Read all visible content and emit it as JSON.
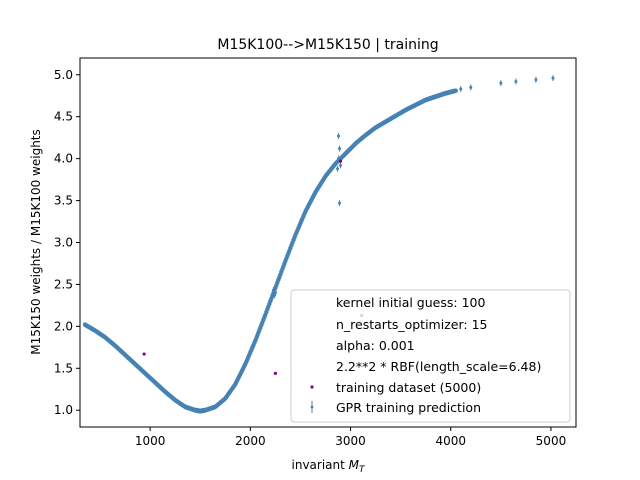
{
  "chart_data": {
    "type": "scatter",
    "title": "M15K100-->M15K150 | training",
    "xlabel_main": "invariant ",
    "xlabel_symbol": "M",
    "xlabel_sub": "T",
    "ylabel": "M15K150 weights / M15K100 weights",
    "xlim": [
      300,
      5250
    ],
    "ylim": [
      0.8,
      5.2
    ],
    "xticks": [
      1000,
      2000,
      3000,
      4000,
      5000
    ],
    "yticks": [
      1.0,
      1.5,
      2.0,
      2.5,
      3.0,
      3.5,
      4.0,
      4.5,
      5.0
    ],
    "xtick_labels": [
      "1000",
      "2000",
      "3000",
      "4000",
      "5000"
    ],
    "ytick_labels": [
      "1.0",
      "1.5",
      "2.0",
      "2.5",
      "3.0",
      "3.5",
      "4.0",
      "4.5",
      "5.0"
    ],
    "grid": false,
    "legend_position": "lower-right",
    "legend_lines": [
      "kernel initial guess: 100",
      "n_restarts_optimizer: 15",
      "alpha: 0.001",
      "2.2**2 * RBF(length_scale=6.48)"
    ],
    "series": [
      {
        "name": "GPR training prediction",
        "color": "#4682b4",
        "marker": "errorbar-point",
        "curve": [
          [
            350,
            2.02
          ],
          [
            450,
            1.95
          ],
          [
            550,
            1.87
          ],
          [
            650,
            1.77
          ],
          [
            750,
            1.66
          ],
          [
            850,
            1.55
          ],
          [
            950,
            1.44
          ],
          [
            1050,
            1.33
          ],
          [
            1150,
            1.22
          ],
          [
            1250,
            1.12
          ],
          [
            1350,
            1.04
          ],
          [
            1450,
            1.0
          ],
          [
            1500,
            0.99
          ],
          [
            1550,
            1.0
          ],
          [
            1650,
            1.04
          ],
          [
            1750,
            1.14
          ],
          [
            1850,
            1.31
          ],
          [
            1950,
            1.55
          ],
          [
            2050,
            1.83
          ],
          [
            2150,
            2.14
          ],
          [
            2250,
            2.46
          ],
          [
            2350,
            2.78
          ],
          [
            2450,
            3.09
          ],
          [
            2550,
            3.37
          ],
          [
            2650,
            3.6
          ],
          [
            2750,
            3.79
          ],
          [
            2850,
            3.94
          ],
          [
            2950,
            4.06
          ],
          [
            3050,
            4.18
          ],
          [
            3150,
            4.28
          ],
          [
            3250,
            4.37
          ],
          [
            3350,
            4.44
          ],
          [
            3450,
            4.51
          ],
          [
            3550,
            4.58
          ],
          [
            3650,
            4.64
          ],
          [
            3750,
            4.7
          ],
          [
            3850,
            4.74
          ],
          [
            3950,
            4.78
          ],
          [
            4050,
            4.81
          ]
        ],
        "outliers": [
          [
            4100,
            4.83
          ],
          [
            4200,
            4.85
          ],
          [
            4500,
            4.9
          ],
          [
            4650,
            4.92
          ],
          [
            4850,
            4.94
          ],
          [
            5020,
            4.96
          ],
          [
            2880,
            4.27
          ],
          [
            2890,
            4.12
          ],
          [
            2880,
            4.0
          ],
          [
            2900,
            3.92
          ],
          [
            2870,
            3.88
          ],
          [
            2890,
            3.47
          ],
          [
            2240,
            2.37
          ],
          [
            2250,
            2.4
          ],
          [
            2230,
            2.43
          ]
        ]
      },
      {
        "name": "training dataset (5000)",
        "color": "#800080",
        "marker": "dot",
        "points": [
          [
            940,
            1.67
          ],
          [
            2250,
            1.44
          ],
          [
            2900,
            3.97
          ],
          [
            3110,
            2.13
          ]
        ]
      }
    ]
  }
}
